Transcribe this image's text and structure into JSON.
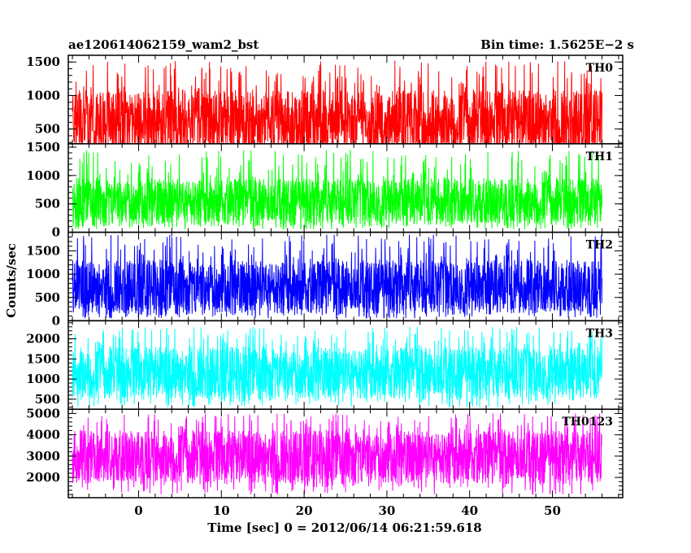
{
  "header": {
    "left_title": "ae120614062159_wam2_bst",
    "right_title": "Bin time: 1.5625E−2 s"
  },
  "chart_data": {
    "type": "line",
    "title": "ae120614062159_wam2_bst",
    "subtitle": "Bin time: 1.5625E−2 s",
    "xlabel": "Time [sec] 0 = 2012/06/14 06:21:59.618",
    "ylabel": "Counts/sec",
    "xlim": [
      -8.5,
      58.5
    ],
    "x_start": -8,
    "x_end": 56,
    "x_ticks": [
      0,
      10,
      20,
      30,
      40,
      50
    ],
    "x_tick_labels": [
      "0",
      "10",
      "20",
      "30",
      "40",
      "50"
    ],
    "panels": [
      {
        "name": "TH0",
        "color": "#ff0000",
        "ylim": [
          280,
          1600
        ],
        "y_ticks": [
          500,
          1000,
          1500
        ],
        "y_tick_labels": [
          "500",
          "1000",
          "1500"
        ],
        "mean": 620,
        "band_low": 150,
        "band_high": 1080,
        "min_value": 100,
        "max_value": 1520
      },
      {
        "name": "TH1",
        "color": "#00ff00",
        "ylim": [
          0,
          1560
        ],
        "y_ticks": [
          0,
          500,
          1000,
          1500
        ],
        "y_tick_labels": [
          "0",
          "500",
          "1000",
          "1500"
        ],
        "mean": 550,
        "band_low": 120,
        "band_high": 950,
        "min_value": 50,
        "max_value": 1450
      },
      {
        "name": "TH2",
        "color": "#0000ff",
        "ylim": [
          0,
          1900
        ],
        "y_ticks": [
          0,
          500,
          1000,
          1500
        ],
        "y_tick_labels": [
          "0",
          "500",
          "1000",
          "1500"
        ],
        "mean": 700,
        "band_low": 150,
        "band_high": 1300,
        "min_value": 50,
        "max_value": 1850
      },
      {
        "name": "TH3",
        "color": "#00ffff",
        "ylim": [
          250,
          2450
        ],
        "y_ticks": [
          500,
          1000,
          1500,
          2000
        ],
        "y_tick_labels": [
          "500",
          "1000",
          "1500",
          "2000"
        ],
        "mean": 1150,
        "band_low": 500,
        "band_high": 1800,
        "min_value": 300,
        "max_value": 2300
      },
      {
        "name": "TH0123",
        "color": "#ff00ff",
        "ylim": [
          1050,
          5200
        ],
        "y_ticks": [
          2000,
          3000,
          4000,
          5000
        ],
        "y_tick_labels": [
          "2000",
          "3000",
          "4000",
          "5000"
        ],
        "mean": 3000,
        "band_low": 1700,
        "band_high": 4200,
        "min_value": 1200,
        "max_value": 5000
      }
    ]
  }
}
